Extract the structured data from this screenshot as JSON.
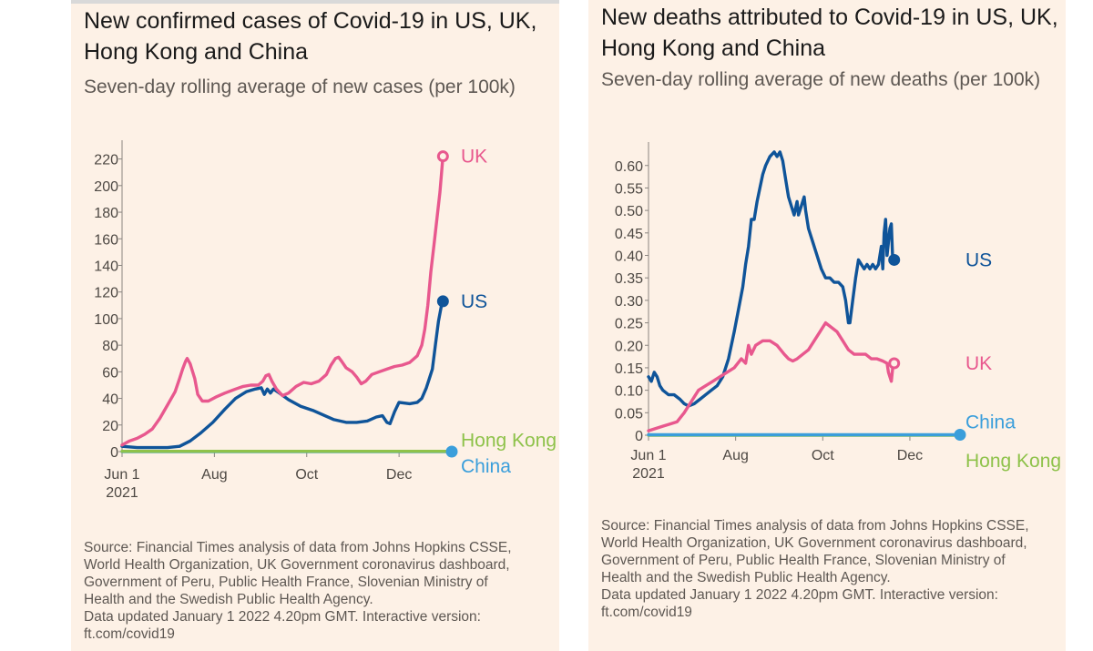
{
  "chart_data": [
    {
      "type": "line",
      "title": "New confirmed cases of Covid-19 in US, UK, Hong Kong and China",
      "title_lines": [
        "New confirmed cases of Covid-19 in US, UK,",
        "Hong Kong and China"
      ],
      "subtitle": "Seven-day rolling average of new cases (per 100k)",
      "xlabel": "",
      "ylabel": "",
      "x_range": [
        0,
        213
      ],
      "ylim": [
        0,
        230
      ],
      "y_ticks": [
        0,
        20,
        40,
        60,
        80,
        100,
        120,
        140,
        160,
        180,
        200,
        220
      ],
      "x_ticks": [
        {
          "day": 0,
          "label": "Jun 1",
          "label2": "2021"
        },
        {
          "day": 61,
          "label": "Aug"
        },
        {
          "day": 122,
          "label": "Oct"
        },
        {
          "day": 183,
          "label": "Dec"
        }
      ],
      "series": [
        {
          "name": "China",
          "color": "#3a9edb",
          "label_offset": 16,
          "points": [
            [
              0,
              0
            ],
            [
              214,
              0
            ]
          ]
        },
        {
          "name": "Hong Kong",
          "color": "#8ec24a",
          "label_offset": -12,
          "points": [
            [
              0,
              0.2
            ],
            [
              214,
              0.2
            ]
          ]
        },
        {
          "name": "US",
          "color": "#0f5499",
          "label_offset": 0,
          "points": [
            [
              0,
              4
            ],
            [
              10,
              3
            ],
            [
              20,
              3
            ],
            [
              30,
              3
            ],
            [
              38,
              4
            ],
            [
              45,
              8
            ],
            [
              52,
              14
            ],
            [
              60,
              22
            ],
            [
              68,
              32
            ],
            [
              75,
              40
            ],
            [
              82,
              45
            ],
            [
              88,
              47
            ],
            [
              92,
              48
            ],
            [
              94,
              43
            ],
            [
              96,
              47
            ],
            [
              98,
              44
            ],
            [
              100,
              47
            ],
            [
              104,
              44
            ],
            [
              110,
              39
            ],
            [
              118,
              34
            ],
            [
              126,
              31
            ],
            [
              134,
              27
            ],
            [
              140,
              24
            ],
            [
              148,
              22
            ],
            [
              155,
              22
            ],
            [
              162,
              23
            ],
            [
              168,
              26
            ],
            [
              172,
              27
            ],
            [
              175,
              22
            ],
            [
              177,
              21
            ],
            [
              180,
              30
            ],
            [
              183,
              37
            ],
            [
              190,
              36
            ],
            [
              195,
              37
            ],
            [
              198,
              40
            ],
            [
              201,
              48
            ],
            [
              203,
              55
            ],
            [
              205,
              62
            ],
            [
              207,
              80
            ],
            [
              209,
              98
            ],
            [
              211,
              110
            ],
            [
              212,
              113
            ]
          ]
        },
        {
          "name": "UK",
          "color": "#e8588e",
          "label_offset": 0,
          "points": [
            [
              0,
              5
            ],
            [
              5,
              8
            ],
            [
              10,
              10
            ],
            [
              15,
              13
            ],
            [
              20,
              17
            ],
            [
              25,
              25
            ],
            [
              30,
              35
            ],
            [
              35,
              45
            ],
            [
              38,
              55
            ],
            [
              40,
              62
            ],
            [
              42,
              68
            ],
            [
              43,
              70
            ],
            [
              45,
              66
            ],
            [
              48,
              55
            ],
            [
              50,
              43
            ],
            [
              53,
              38
            ],
            [
              57,
              38
            ],
            [
              62,
              41
            ],
            [
              68,
              44
            ],
            [
              75,
              47
            ],
            [
              80,
              49
            ],
            [
              85,
              50
            ],
            [
              90,
              50
            ],
            [
              93,
              53
            ],
            [
              95,
              57
            ],
            [
              97,
              58
            ],
            [
              99,
              53
            ],
            [
              102,
              47
            ],
            [
              106,
              42
            ],
            [
              110,
              44
            ],
            [
              115,
              49
            ],
            [
              120,
              52
            ],
            [
              125,
              51
            ],
            [
              130,
              53
            ],
            [
              135,
              58
            ],
            [
              138,
              65
            ],
            [
              141,
              70
            ],
            [
              143,
              71
            ],
            [
              145,
              68
            ],
            [
              148,
              63
            ],
            [
              152,
              60
            ],
            [
              155,
              56
            ],
            [
              158,
              51
            ],
            [
              161,
              53
            ],
            [
              165,
              58
            ],
            [
              170,
              60
            ],
            [
              175,
              62
            ],
            [
              180,
              64
            ],
            [
              185,
              65
            ],
            [
              190,
              67
            ],
            [
              195,
              72
            ],
            [
              198,
              80
            ],
            [
              200,
              92
            ],
            [
              202,
              110
            ],
            [
              204,
              135
            ],
            [
              206,
              155
            ],
            [
              208,
              175
            ],
            [
              210,
              195
            ],
            [
              212,
              222
            ]
          ]
        }
      ],
      "source": "Source: Financial Times analysis of data from Johns Hopkins CSSE, World Health Organization, UK Government coronavirus dashboard, Government of Peru, Public Health France, Slovenian Ministry of Health and the Swedish Public Health Agency.",
      "source_lines": [
        "Source: Financial Times analysis of data from Johns Hopkins CSSE,",
        "World Health Organization, UK Government coronavirus dashboard,",
        "Government of Peru, Public Health France, Slovenian Ministry of",
        "Health and the Swedish Public Health Agency."
      ],
      "updated_lines": [
        "Data updated January 1 2022 4.20pm GMT. Interactive version:",
        "ft.com/covid19"
      ]
    },
    {
      "type": "line",
      "title": "New deaths attributed to Covid-19 in US, UK, Hong Kong and China",
      "title_lines": [
        "New deaths attributed to Covid-19 in US, UK,",
        "Hong Kong and China"
      ],
      "subtitle": "Seven-day rolling average of new deaths (per 100k)",
      "xlabel": "",
      "ylabel": "",
      "x_range": [
        0,
        213
      ],
      "ylim": [
        0,
        0.64
      ],
      "y_ticks": [
        0,
        0.05,
        0.1,
        0.15,
        0.2,
        0.25,
        0.3,
        0.35,
        0.4,
        0.45,
        0.5,
        0.55,
        0.6
      ],
      "y_tick_labels": [
        "0",
        "0.05",
        "0.10",
        "0.15",
        "0.20",
        "0.25",
        "0.30",
        "0.35",
        "0.40",
        "0.45",
        "0.50",
        "0.55",
        "0.60"
      ],
      "x_ticks": [
        {
          "day": 0,
          "label": "Jun 1",
          "label2": "2021"
        },
        {
          "day": 61,
          "label": "Aug"
        },
        {
          "day": 122,
          "label": "Oct"
        },
        {
          "day": 183,
          "label": "Dec"
        }
      ],
      "series": [
        {
          "name": "Hong Kong",
          "color": "#8ec24a",
          "label_offset": 28,
          "points": [
            [
              0,
              0
            ],
            [
              214,
              0
            ]
          ]
        },
        {
          "name": "China",
          "color": "#3a9edb",
          "label_offset": -14,
          "points": [
            [
              0,
              0.001
            ],
            [
              214,
              0.001
            ]
          ]
        },
        {
          "name": "US",
          "color": "#0f5499",
          "label_offset": 0,
          "points": [
            [
              0,
              0.13
            ],
            [
              2,
              0.12
            ],
            [
              4,
              0.14
            ],
            [
              6,
              0.13
            ],
            [
              8,
              0.11
            ],
            [
              10,
              0.1
            ],
            [
              14,
              0.09
            ],
            [
              18,
              0.09
            ],
            [
              22,
              0.08
            ],
            [
              25,
              0.07
            ],
            [
              28,
              0.065
            ],
            [
              32,
              0.07
            ],
            [
              36,
              0.08
            ],
            [
              40,
              0.09
            ],
            [
              44,
              0.1
            ],
            [
              48,
              0.11
            ],
            [
              52,
              0.13
            ],
            [
              56,
              0.17
            ],
            [
              60,
              0.23
            ],
            [
              63,
              0.28
            ],
            [
              66,
              0.33
            ],
            [
              68,
              0.38
            ],
            [
              70,
              0.42
            ],
            [
              72,
              0.48
            ],
            [
              74,
              0.48
            ],
            [
              76,
              0.52
            ],
            [
              78,
              0.55
            ],
            [
              80,
              0.58
            ],
            [
              82,
              0.6
            ],
            [
              85,
              0.62
            ],
            [
              88,
              0.63
            ],
            [
              90,
              0.62
            ],
            [
              92,
              0.63
            ],
            [
              94,
              0.61
            ],
            [
              96,
              0.57
            ],
            [
              98,
              0.53
            ],
            [
              100,
              0.51
            ],
            [
              102,
              0.49
            ],
            [
              104,
              0.52
            ],
            [
              105,
              0.49
            ],
            [
              107,
              0.51
            ],
            [
              109,
              0.53
            ],
            [
              110,
              0.5
            ],
            [
              112,
              0.46
            ],
            [
              115,
              0.43
            ],
            [
              118,
              0.4
            ],
            [
              121,
              0.37
            ],
            [
              124,
              0.35
            ],
            [
              127,
              0.35
            ],
            [
              130,
              0.34
            ],
            [
              133,
              0.34
            ],
            [
              136,
              0.33
            ],
            [
              138,
              0.3
            ],
            [
              140,
              0.25
            ],
            [
              141,
              0.25
            ],
            [
              143,
              0.3
            ],
            [
              145,
              0.35
            ],
            [
              147,
              0.39
            ],
            [
              149,
              0.38
            ],
            [
              151,
              0.37
            ],
            [
              153,
              0.38
            ],
            [
              155,
              0.37
            ],
            [
              157,
              0.38
            ],
            [
              159,
              0.37
            ],
            [
              161,
              0.38
            ],
            [
              163,
              0.42
            ],
            [
              164,
              0.37
            ],
            [
              165,
              0.45
            ],
            [
              166,
              0.48
            ],
            [
              167,
              0.4
            ],
            [
              169,
              0.46
            ],
            [
              170,
              0.47
            ],
            [
              171,
              0.39
            ],
            [
              172,
              0.39
            ]
          ]
        },
        {
          "name": "UK",
          "color": "#e8588e",
          "label_offset": 0,
          "points": [
            [
              0,
              0.01
            ],
            [
              5,
              0.015
            ],
            [
              10,
              0.02
            ],
            [
              15,
              0.025
            ],
            [
              20,
              0.03
            ],
            [
              25,
              0.05
            ],
            [
              30,
              0.075
            ],
            [
              35,
              0.1
            ],
            [
              40,
              0.11
            ],
            [
              45,
              0.12
            ],
            [
              50,
              0.13
            ],
            [
              55,
              0.14
            ],
            [
              60,
              0.15
            ],
            [
              65,
              0.17
            ],
            [
              68,
              0.16
            ],
            [
              70,
              0.2
            ],
            [
              72,
              0.18
            ],
            [
              75,
              0.2
            ],
            [
              80,
              0.21
            ],
            [
              85,
              0.21
            ],
            [
              90,
              0.2
            ],
            [
              95,
              0.18
            ],
            [
              98,
              0.17
            ],
            [
              101,
              0.165
            ],
            [
              104,
              0.17
            ],
            [
              108,
              0.18
            ],
            [
              112,
              0.19
            ],
            [
              116,
              0.21
            ],
            [
              120,
              0.23
            ],
            [
              124,
              0.25
            ],
            [
              128,
              0.24
            ],
            [
              132,
              0.23
            ],
            [
              136,
              0.21
            ],
            [
              140,
              0.19
            ],
            [
              144,
              0.18
            ],
            [
              148,
              0.18
            ],
            [
              152,
              0.18
            ],
            [
              156,
              0.17
            ],
            [
              160,
              0.17
            ],
            [
              164,
              0.165
            ],
            [
              167,
              0.16
            ],
            [
              168,
              0.14
            ],
            [
              170,
              0.12
            ],
            [
              171,
              0.15
            ],
            [
              172,
              0.16
            ]
          ]
        }
      ],
      "source": "Source: Financial Times analysis of data from Johns Hopkins CSSE, World Health Organization, UK Government coronavirus dashboard, Government of Peru, Public Health France, Slovenian Ministry of Health and the Swedish Public Health Agency.",
      "source_lines": [
        "Source: Financial Times analysis of data from Johns Hopkins CSSE,",
        "World Health Organization, UK Government coronavirus dashboard,",
        "Government of Peru, Public Health France, Slovenian Ministry of",
        "Health and the Swedish Public Health Agency."
      ],
      "updated_lines": [
        "Data updated January 1 2022 4.20pm GMT. Interactive version:",
        "ft.com/covid19"
      ]
    }
  ]
}
